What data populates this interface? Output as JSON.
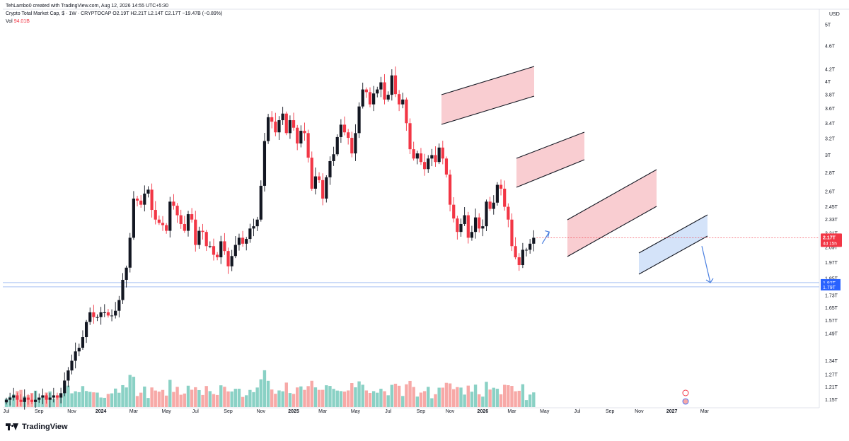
{
  "header": {
    "author_line": "TehLambo0 created with TradingView.com, Aug 12, 2026 14:55 UTC+5:30",
    "symbol_line": "Crypto Total Market Cap, $ · 1W · CRYPTOCAP  O2.19T  H2.21T  L2.14T  C2.17T  −19.47B (−0.89%)",
    "vol_label": "Vol",
    "vol_value": "94.01B"
  },
  "footer": {
    "brand": "TradingView"
  },
  "axis": {
    "currency": "USD"
  },
  "chart_data": {
    "type": "candlestick",
    "title": "Crypto Total Market Cap, $",
    "interval": "1W",
    "y_scale": "log",
    "ylim": [
      1.13,
      5.3
    ],
    "y_unit": "T",
    "y_ticks": [
      {
        "v": 5.0,
        "label": "5T"
      },
      {
        "v": 4.6,
        "label": "4.6T"
      },
      {
        "v": 4.2,
        "label": "4.2T"
      },
      {
        "v": 4.0,
        "label": "4T"
      },
      {
        "v": 3.8,
        "label": "3.8T"
      },
      {
        "v": 3.6,
        "label": "3.6T"
      },
      {
        "v": 3.4,
        "label": "3.4T"
      },
      {
        "v": 3.2,
        "label": "3.2T"
      },
      {
        "v": 3.0,
        "label": "3T"
      },
      {
        "v": 2.8,
        "label": "2.8T"
      },
      {
        "v": 2.6,
        "label": "2.6T"
      },
      {
        "v": 2.45,
        "label": "2.45T"
      },
      {
        "v": 2.33,
        "label": "2.33T"
      },
      {
        "v": 2.21,
        "label": "2.21T"
      },
      {
        "v": 2.09,
        "label": "2.09T"
      },
      {
        "v": 1.97,
        "label": "1.97T"
      },
      {
        "v": 1.85,
        "label": "1.85T"
      },
      {
        "v": 1.73,
        "label": "1.73T"
      },
      {
        "v": 1.65,
        "label": "1.65T"
      },
      {
        "v": 1.57,
        "label": "1.57T"
      },
      {
        "v": 1.49,
        "label": "1.49T"
      },
      {
        "v": 1.34,
        "label": "1.34T"
      },
      {
        "v": 1.27,
        "label": "1.27T"
      },
      {
        "v": 1.21,
        "label": "1.21T"
      },
      {
        "v": 1.15,
        "label": "1.15T"
      }
    ],
    "x_ticks": [
      {
        "i": 0,
        "label": "Jul",
        "bold": false
      },
      {
        "i": 9,
        "label": "Sep",
        "bold": false
      },
      {
        "i": 18,
        "label": "Nov",
        "bold": false
      },
      {
        "i": 26,
        "label": "2024",
        "bold": true
      },
      {
        "i": 35,
        "label": "Mar",
        "bold": false
      },
      {
        "i": 44,
        "label": "May",
        "bold": false
      },
      {
        "i": 52,
        "label": "Jul",
        "bold": false
      },
      {
        "i": 61,
        "label": "Sep",
        "bold": false
      },
      {
        "i": 70,
        "label": "Nov",
        "bold": false
      },
      {
        "i": 79,
        "label": "2025",
        "bold": true
      },
      {
        "i": 87,
        "label": "Mar",
        "bold": false
      },
      {
        "i": 96,
        "label": "May",
        "bold": false
      },
      {
        "i": 105,
        "label": "Jul",
        "bold": false
      },
      {
        "i": 114,
        "label": "Sep",
        "bold": false
      },
      {
        "i": 122,
        "label": "Nov",
        "bold": false
      },
      {
        "i": 131,
        "label": "2026",
        "bold": true
      },
      {
        "i": 139,
        "label": "Mar",
        "bold": false
      },
      {
        "i": 148,
        "label": "May",
        "bold": false
      },
      {
        "i": 157,
        "label": "Jul",
        "bold": false
      },
      {
        "i": 166,
        "label": "Sep",
        "bold": false
      },
      {
        "i": 174,
        "label": "Nov",
        "bold": false
      },
      {
        "i": 183,
        "label": "2027",
        "bold": true
      },
      {
        "i": 192,
        "label": "Mar",
        "bold": false
      }
    ],
    "candles_close": [
      1.15,
      1.16,
      1.17,
      1.15,
      1.14,
      1.16,
      1.15,
      1.14,
      1.15,
      1.16,
      1.17,
      1.15,
      1.16,
      1.17,
      1.16,
      1.18,
      1.24,
      1.29,
      1.34,
      1.39,
      1.41,
      1.47,
      1.56,
      1.62,
      1.59,
      1.59,
      1.62,
      1.62,
      1.6,
      1.6,
      1.63,
      1.7,
      1.84,
      1.93,
      2.17,
      2.53,
      2.51,
      2.47,
      2.58,
      2.62,
      2.42,
      2.33,
      2.3,
      2.28,
      2.23,
      2.5,
      2.46,
      2.37,
      2.29,
      2.23,
      2.38,
      2.33,
      2.11,
      2.23,
      2.22,
      2.1,
      2.1,
      2.03,
      2.01,
      2.14,
      2.06,
      1.94,
      2.02,
      2.11,
      2.17,
      2.12,
      2.16,
      2.25,
      2.27,
      2.33,
      2.66,
      3.17,
      3.48,
      3.42,
      3.28,
      3.44,
      3.53,
      3.27,
      3.44,
      3.34,
      3.14,
      3.3,
      3.27,
      2.97,
      2.63,
      2.76,
      2.72,
      2.53,
      2.75,
      2.93,
      3.01,
      3.22,
      3.38,
      3.28,
      3.21,
      3.02,
      3.27,
      3.63,
      3.88,
      3.84,
      3.66,
      3.82,
      3.88,
      3.99,
      3.73,
      3.8,
      4.1,
      3.81,
      3.66,
      3.73,
      3.4,
      3.07,
      2.96,
      3.02,
      2.92,
      2.84,
      2.96,
      3.0,
      2.92,
      3.09,
      2.96,
      2.78,
      2.47,
      2.34,
      2.22,
      2.29,
      2.37,
      2.17,
      2.22,
      2.35,
      2.25,
      2.27,
      2.5,
      2.43,
      2.49,
      2.67,
      2.63,
      2.45,
      2.33,
      2.1,
      2.01,
      1.95,
      2.07,
      2.07,
      2.12,
      2.17
    ],
    "volume_note": "relative weekly volume bars in the lower pane",
    "horizontal_levels": [
      {
        "value": 1.82,
        "label": "1.82T"
      },
      {
        "value": 1.79,
        "label": "1.79T"
      }
    ],
    "current_price": {
      "value": 2.17,
      "label": "2.17T",
      "countdown": "4d 15h"
    },
    "channels": [
      {
        "name": "channel-1",
        "fill": "#f8c8cc"
      },
      {
        "name": "channel-2",
        "fill": "#f8c8cc"
      },
      {
        "name": "channel-3",
        "fill": "#f8c8cc"
      },
      {
        "name": "channel-4",
        "fill": "#cfe0f8"
      }
    ],
    "colors": {
      "up": "#131722",
      "down": "#f23645",
      "up_wick": "#131722",
      "down_wick": "#f23645",
      "vol_up": "#8ad1c5",
      "vol_down": "#f7a9a7",
      "level_line": "#a7c1f2",
      "level_label": "#2962ff",
      "price_label": "#f23645",
      "arrow": "#4a7fe0"
    }
  }
}
